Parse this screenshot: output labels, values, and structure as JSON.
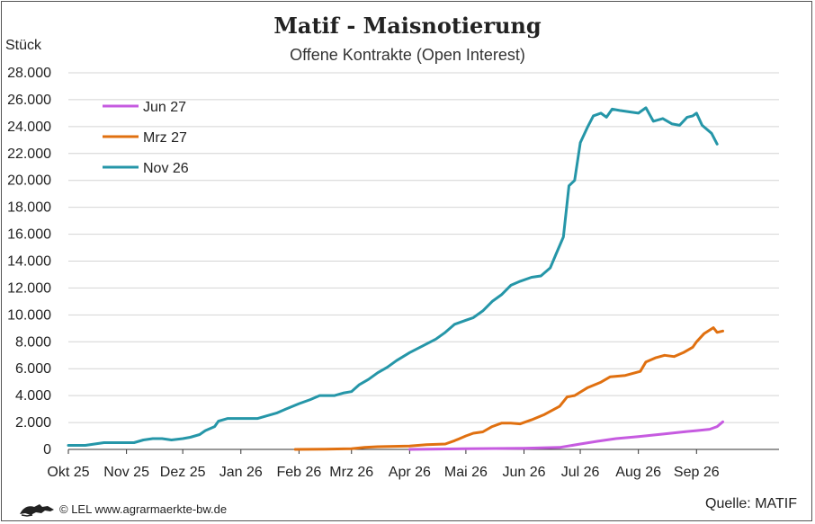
{
  "chart_data": {
    "type": "line",
    "title": "Matif - Maisnotierung",
    "subtitle": "Offene Kontrakte (Open Interest)",
    "ylabel": "Stück",
    "ylim": [
      0,
      28000
    ],
    "yticks": [
      0,
      2000,
      4000,
      6000,
      8000,
      10000,
      12000,
      14000,
      16000,
      18000,
      20000,
      22000,
      24000,
      26000,
      28000
    ],
    "ytick_labels": [
      "0",
      "2.000",
      "4.000",
      "6.000",
      "8.000",
      "10.000",
      "12.000",
      "14.000",
      "16.000",
      "18.000",
      "20.000",
      "22.000",
      "24.000",
      "26.000",
      "28.000"
    ],
    "xlim": [
      "2025-10-01",
      "2026-10-15"
    ],
    "xticks": [
      "2025-10-01",
      "2025-11-01",
      "2025-12-01",
      "2026-01-01",
      "2026-02-01",
      "2026-03-01",
      "2026-04-01",
      "2026-05-01",
      "2026-06-01",
      "2026-07-01",
      "2026-08-01",
      "2026-09-01"
    ],
    "xtick_labels": [
      "Okt 25",
      "Nov 25",
      "Dez 25",
      "Jan 26",
      "Feb 26",
      "Mrz 26",
      "Apr 26",
      "Mai 26",
      "Jun 26",
      "Jul 26",
      "Aug 26",
      "Sep 26"
    ],
    "grid": "horizontal",
    "legend_position": "top-left",
    "series": [
      {
        "name": "Jun 27",
        "color": "#c65be0",
        "points": [
          [
            "2026-04-01",
            0
          ],
          [
            "2026-05-01",
            50
          ],
          [
            "2026-06-01",
            80
          ],
          [
            "2026-06-20",
            150
          ],
          [
            "2026-07-01",
            400
          ],
          [
            "2026-07-10",
            600
          ],
          [
            "2026-07-20",
            800
          ],
          [
            "2026-08-01",
            950
          ],
          [
            "2026-08-15",
            1150
          ],
          [
            "2026-08-25",
            1300
          ],
          [
            "2026-09-01",
            1400
          ],
          [
            "2026-09-08",
            1500
          ],
          [
            "2026-09-12",
            1700
          ],
          [
            "2026-09-15",
            2050
          ]
        ]
      },
      {
        "name": "Mrz 27",
        "color": "#e07010",
        "points": [
          [
            "2026-01-30",
            0
          ],
          [
            "2026-02-15",
            20
          ],
          [
            "2026-03-01",
            50
          ],
          [
            "2026-03-08",
            150
          ],
          [
            "2026-03-15",
            200
          ],
          [
            "2026-04-01",
            250
          ],
          [
            "2026-04-10",
            350
          ],
          [
            "2026-04-20",
            400
          ],
          [
            "2026-04-25",
            650
          ],
          [
            "2026-05-01",
            1000
          ],
          [
            "2026-05-05",
            1200
          ],
          [
            "2026-05-10",
            1300
          ],
          [
            "2026-05-15",
            1700
          ],
          [
            "2026-05-20",
            1950
          ],
          [
            "2026-05-25",
            1950
          ],
          [
            "2026-05-30",
            1900
          ],
          [
            "2026-06-05",
            2200
          ],
          [
            "2026-06-12",
            2600
          ],
          [
            "2026-06-20",
            3200
          ],
          [
            "2026-06-24",
            3900
          ],
          [
            "2026-06-28",
            4000
          ],
          [
            "2026-07-05",
            4600
          ],
          [
            "2026-07-12",
            5000
          ],
          [
            "2026-07-17",
            5400
          ],
          [
            "2026-07-25",
            5500
          ],
          [
            "2026-08-02",
            5800
          ],
          [
            "2026-08-05",
            6500
          ],
          [
            "2026-08-10",
            6800
          ],
          [
            "2026-08-15",
            7000
          ],
          [
            "2026-08-20",
            6900
          ],
          [
            "2026-08-25",
            7200
          ],
          [
            "2026-08-30",
            7600
          ],
          [
            "2026-09-01",
            8000
          ],
          [
            "2026-09-05",
            8600
          ],
          [
            "2026-09-10",
            9050
          ],
          [
            "2026-09-12",
            8700
          ],
          [
            "2026-09-15",
            8800
          ]
        ]
      },
      {
        "name": "Nov 26",
        "color": "#2596a8",
        "points": [
          [
            "2025-10-01",
            300
          ],
          [
            "2025-10-10",
            300
          ],
          [
            "2025-10-15",
            400
          ],
          [
            "2025-10-20",
            500
          ],
          [
            "2025-11-05",
            500
          ],
          [
            "2025-11-10",
            700
          ],
          [
            "2025-11-15",
            800
          ],
          [
            "2025-11-20",
            800
          ],
          [
            "2025-11-25",
            700
          ],
          [
            "2025-12-01",
            800
          ],
          [
            "2025-12-05",
            900
          ],
          [
            "2025-12-10",
            1100
          ],
          [
            "2025-12-13",
            1400
          ],
          [
            "2025-12-18",
            1700
          ],
          [
            "2025-12-20",
            2100
          ],
          [
            "2025-12-25",
            2300
          ],
          [
            "2026-01-01",
            2300
          ],
          [
            "2026-01-10",
            2300
          ],
          [
            "2026-01-15",
            2500
          ],
          [
            "2026-01-20",
            2700
          ],
          [
            "2026-01-25",
            3000
          ],
          [
            "2026-02-01",
            3400
          ],
          [
            "2026-02-07",
            3700
          ],
          [
            "2026-02-12",
            4000
          ],
          [
            "2026-02-20",
            4000
          ],
          [
            "2026-02-25",
            4200
          ],
          [
            "2026-03-01",
            4300
          ],
          [
            "2026-03-05",
            4800
          ],
          [
            "2026-03-10",
            5200
          ],
          [
            "2026-03-15",
            5700
          ],
          [
            "2026-03-20",
            6100
          ],
          [
            "2026-03-25",
            6600
          ],
          [
            "2026-04-01",
            7200
          ],
          [
            "2026-04-08",
            7700
          ],
          [
            "2026-04-15",
            8200
          ],
          [
            "2026-04-20",
            8700
          ],
          [
            "2026-04-25",
            9300
          ],
          [
            "2026-05-01",
            9600
          ],
          [
            "2026-05-05",
            9800
          ],
          [
            "2026-05-10",
            10300
          ],
          [
            "2026-05-15",
            11000
          ],
          [
            "2026-05-20",
            11500
          ],
          [
            "2026-05-25",
            12200
          ],
          [
            "2026-05-30",
            12500
          ],
          [
            "2026-06-05",
            12800
          ],
          [
            "2026-06-10",
            12900
          ],
          [
            "2026-06-15",
            13500
          ],
          [
            "2026-06-18",
            14500
          ],
          [
            "2026-06-22",
            15800
          ],
          [
            "2026-06-25",
            19600
          ],
          [
            "2026-06-28",
            20000
          ],
          [
            "2026-07-01",
            22800
          ],
          [
            "2026-07-05",
            24000
          ],
          [
            "2026-07-08",
            24800
          ],
          [
            "2026-07-12",
            25000
          ],
          [
            "2026-07-15",
            24700
          ],
          [
            "2026-07-18",
            25300
          ],
          [
            "2026-07-22",
            25200
          ],
          [
            "2026-07-27",
            25100
          ],
          [
            "2026-08-01",
            25000
          ],
          [
            "2026-08-05",
            25400
          ],
          [
            "2026-08-09",
            24400
          ],
          [
            "2026-08-14",
            24600
          ],
          [
            "2026-08-19",
            24200
          ],
          [
            "2026-08-23",
            24100
          ],
          [
            "2026-08-27",
            24700
          ],
          [
            "2026-08-30",
            24800
          ],
          [
            "2026-09-01",
            25000
          ],
          [
            "2026-09-04",
            24100
          ],
          [
            "2026-09-09",
            23500
          ],
          [
            "2026-09-12",
            22700
          ]
        ]
      }
    ]
  },
  "footer": {
    "copyright": "© LEL www.agrarmaerkte-bw.de",
    "source": "Quelle: MATIF"
  },
  "logo": {
    "icon": "lion-logo-icon",
    "color": "#222222"
  },
  "colors": {
    "grid": "#d4d4d4",
    "axis": "#333333",
    "frame": "#555555"
  }
}
